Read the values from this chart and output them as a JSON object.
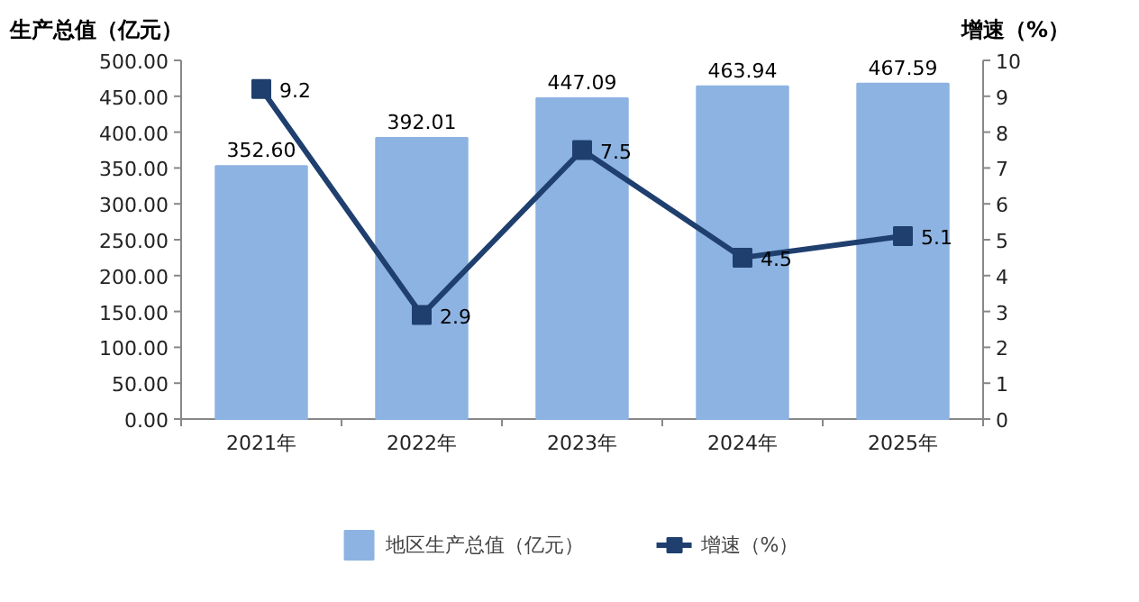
{
  "chart_data": {
    "type": "bar",
    "categories": [
      "2021年",
      "2022年",
      "2023年",
      "2024年",
      "2025年"
    ],
    "ylabel": "生产总值（亿元）",
    "y2label": "增速（%）",
    "series": [
      {
        "name": "地区生产总值（亿元）",
        "color": "#8db3e2",
        "values": [
          352.6,
          392.01,
          447.09,
          463.94,
          467.59
        ],
        "value_labels": [
          "352.60",
          "392.01",
          "447.09",
          "463.94",
          "467.59"
        ]
      },
      {
        "name": "增速（%）",
        "type": "line",
        "axis": "y2",
        "color": "#1f3f6e",
        "marker": "square",
        "values": [
          9.2,
          2.9,
          7.5,
          4.5,
          5.1
        ],
        "value_labels": [
          "9.2",
          "2.9",
          "7.5",
          "4.5",
          "5.1"
        ]
      }
    ],
    "ylim": [
      0,
      500
    ],
    "yticks": [
      {
        "value": 0,
        "label": "0.00"
      },
      {
        "value": 50,
        "label": "50.00"
      },
      {
        "value": 100,
        "label": "100.00"
      },
      {
        "value": 150,
        "label": "150.00"
      },
      {
        "value": 200,
        "label": "200.00"
      },
      {
        "value": 250,
        "label": "250.00"
      },
      {
        "value": 300,
        "label": "300.00"
      },
      {
        "value": 350,
        "label": "350.00"
      },
      {
        "value": 400,
        "label": "400.00"
      },
      {
        "value": 450,
        "label": "450.00"
      },
      {
        "value": 500,
        "label": "500.00"
      }
    ],
    "y2lim": [
      0,
      10
    ],
    "y2ticks": [
      0,
      1,
      2,
      3,
      4,
      5,
      6,
      7,
      8,
      9,
      10
    ],
    "grid": false,
    "legend": "bottom"
  }
}
